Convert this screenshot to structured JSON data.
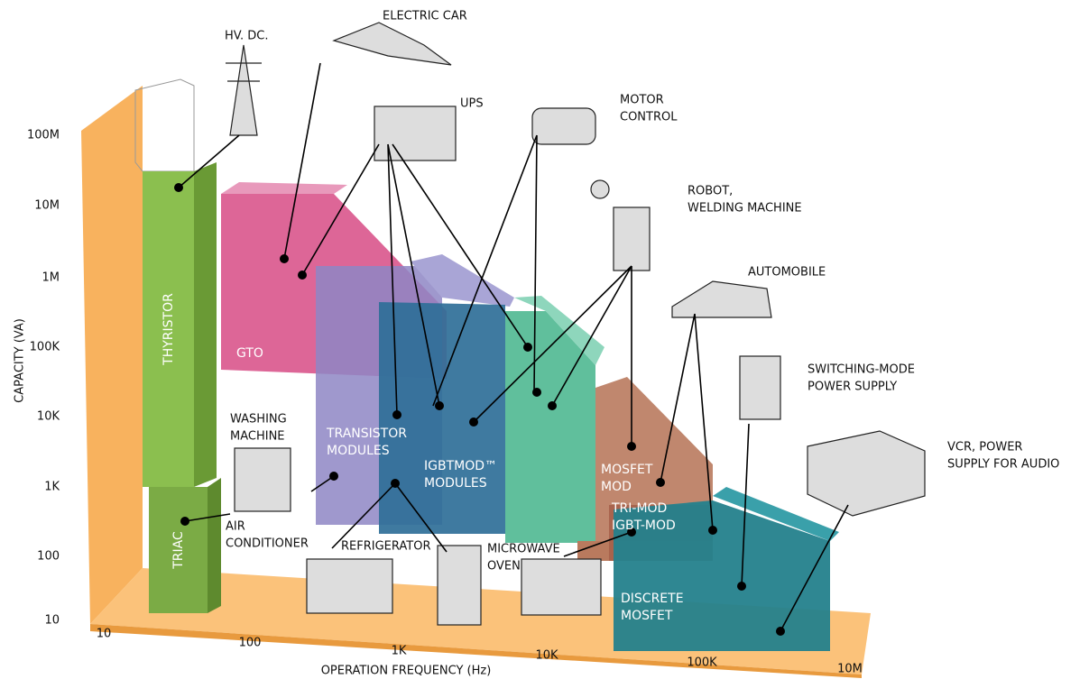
{
  "axes": {
    "y_title": "CAPACITY (VA)",
    "x_title": "OPERATION FREQUENCY (Hz)",
    "y_ticks": [
      "10",
      "100",
      "1K",
      "10K",
      "100K",
      "1M",
      "10M",
      "100M"
    ],
    "x_ticks": [
      "10",
      "100",
      "1K",
      "10K",
      "100K",
      "10M"
    ]
  },
  "regions": [
    {
      "lines": [
        "THYRISTOR"
      ]
    },
    {
      "lines": [
        "TRIAC"
      ]
    },
    {
      "lines": [
        "GTO"
      ]
    },
    {
      "lines": [
        "TRANSISTOR",
        "MODULES"
      ]
    },
    {
      "lines": [
        "IGBTMOD™",
        "MODULES"
      ]
    },
    {
      "lines": [
        "MOSFET",
        "MOD"
      ]
    },
    {
      "lines": [
        "TRI-MOD",
        "IGBT-MOD"
      ]
    },
    {
      "lines": [
        "DISCRETE",
        "MOSFET"
      ]
    }
  ],
  "applications": [
    {
      "lines": [
        "HV. DC."
      ]
    },
    {
      "lines": [
        "ELECTRIC CAR"
      ]
    },
    {
      "lines": [
        "UPS"
      ]
    },
    {
      "lines": [
        "MOTOR",
        "CONTROL"
      ]
    },
    {
      "lines": [
        "ROBOT,",
        "WELDING MACHINE"
      ]
    },
    {
      "lines": [
        "AUTOMOBILE"
      ]
    },
    {
      "lines": [
        "SWITCHING-MODE",
        "POWER SUPPLY"
      ]
    },
    {
      "lines": [
        "VCR, POWER",
        "SUPPLY FOR AUDIO"
      ]
    },
    {
      "lines": [
        "WASHING",
        "MACHINE"
      ]
    },
    {
      "lines": [
        "AIR",
        "CONDITIONER"
      ]
    },
    {
      "lines": [
        "REFRIGERATOR"
      ]
    },
    {
      "lines": [
        "MICROWAVE",
        "OVEN"
      ]
    }
  ]
}
